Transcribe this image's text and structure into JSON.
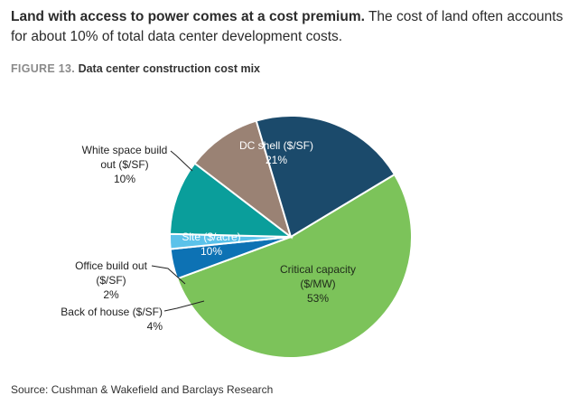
{
  "header": {
    "lead_bold": "Land with access to power comes at a cost premium.",
    "lead_rest": " The cost of land often accounts for about 10% of total data center development costs."
  },
  "figure": {
    "number": "FIGURE 13.",
    "title": "Data center construction cost mix"
  },
  "source": "Source: Cushman & Wakefield and Barclays Research",
  "chart_data": {
    "type": "pie",
    "title": "Data center construction cost mix",
    "slices": [
      {
        "name": "Critical capacity ($/MW)",
        "value": 53,
        "label_lines": [
          "Critical capacity",
          "($/MW)",
          "53%"
        ],
        "color": "#7cc35a"
      },
      {
        "name": "Back of house ($/SF)",
        "value": 4,
        "label_lines": [
          "Back of house ($/SF)",
          "4%"
        ],
        "color": "#0d72b4"
      },
      {
        "name": "Office build out ($/SF)",
        "value": 2,
        "label_lines": [
          "Office build out",
          "($/SF)",
          "2%"
        ],
        "color": "#5bc2ea"
      },
      {
        "name": "Site ($/acre)",
        "value": 10,
        "label_lines": [
          "Site ($/acre)",
          "10%"
        ],
        "color": "#0a9e9b"
      },
      {
        "name": "White space build out ($/SF)",
        "value": 10,
        "label_lines": [
          "White space build",
          "out ($/SF)",
          "10%"
        ],
        "color": "#9a8274"
      },
      {
        "name": "DC shell ($/SF)",
        "value": 21,
        "label_lines": [
          "DC shell ($/SF)",
          "21%"
        ],
        "color": "#1b4a6b"
      }
    ]
  }
}
